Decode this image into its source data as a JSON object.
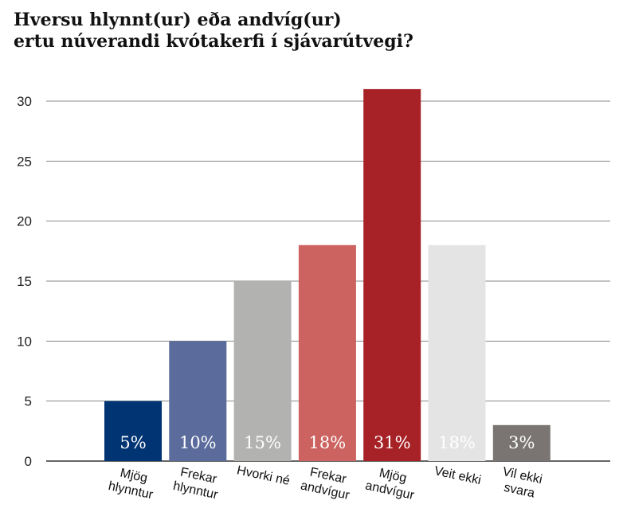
{
  "chart_data": {
    "type": "bar",
    "title_lines": [
      "Hversu hlynnt(ur) eða andvíg(ur)",
      "ertu núverandi kvótakerfi í sjávarútvegi?"
    ],
    "categories": [
      [
        "Mjög",
        "hlynntur"
      ],
      [
        "Frekar",
        "hlynntur"
      ],
      [
        "Hvorki né"
      ],
      [
        "Frekar",
        "andvígur"
      ],
      [
        "Mjög",
        "andvígur"
      ],
      [
        "Veit ekki"
      ],
      [
        "Vil ekki",
        "svara"
      ]
    ],
    "values": [
      5,
      10,
      15,
      18,
      31,
      18,
      3
    ],
    "data_labels": [
      "5%",
      "10%",
      "15%",
      "18%",
      "31%",
      "18%",
      "3%"
    ],
    "colors": [
      "#003473",
      "#5a6b9c",
      "#b2b2b0",
      "#cc6360",
      "#a72226",
      "#e5e4e5",
      "#7a7573"
    ],
    "ylim": [
      0,
      30
    ],
    "yticks": [
      0,
      5,
      10,
      15,
      20,
      25,
      30
    ],
    "grid": true
  }
}
